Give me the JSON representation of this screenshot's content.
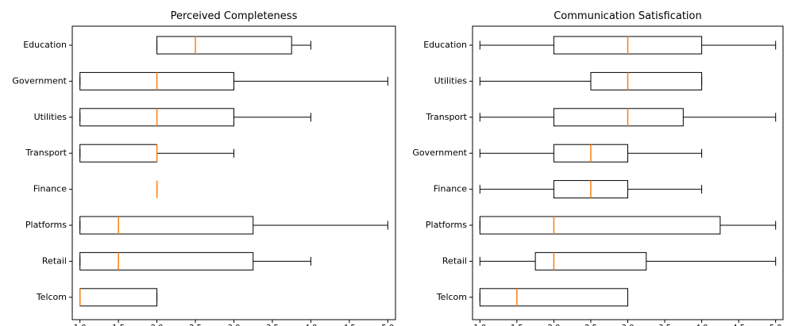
{
  "chart_data": [
    {
      "type": "boxplot",
      "orientation": "horizontal",
      "title": "Perceived Completeness",
      "xlim": [
        0.9,
        5.1
      ],
      "xticks": [
        "1.0",
        "1.5",
        "2.0",
        "2.5",
        "3.0",
        "3.5",
        "4.0",
        "4.5",
        "5.0"
      ],
      "median_color": "#ff7f0e",
      "categories": [
        "Education",
        "Government",
        "Utilities",
        "Transport",
        "Finance",
        "Platforms",
        "Retail",
        "Telcom"
      ],
      "boxes": [
        {
          "label": "Education",
          "min": 2.0,
          "q1": 2.0,
          "median": 2.5,
          "q3": 3.75,
          "max": 4.0
        },
        {
          "label": "Government",
          "min": 1.0,
          "q1": 1.0,
          "median": 2.0,
          "q3": 3.0,
          "max": 5.0
        },
        {
          "label": "Utilities",
          "min": 1.0,
          "q1": 1.0,
          "median": 2.0,
          "q3": 3.0,
          "max": 4.0
        },
        {
          "label": "Transport",
          "min": 1.0,
          "q1": 1.0,
          "median": 2.0,
          "q3": 2.0,
          "max": 3.0
        },
        {
          "label": "Finance",
          "min": 2.0,
          "q1": 2.0,
          "median": 2.0,
          "q3": 2.0,
          "max": 2.0
        },
        {
          "label": "Platforms",
          "min": 1.0,
          "q1": 1.0,
          "median": 1.5,
          "q3": 3.25,
          "max": 5.0
        },
        {
          "label": "Retail",
          "min": 1.0,
          "q1": 1.0,
          "median": 1.5,
          "q3": 3.25,
          "max": 4.0
        },
        {
          "label": "Telcom",
          "min": 1.0,
          "q1": 1.0,
          "median": 1.0,
          "q3": 2.0,
          "max": 2.0
        }
      ]
    },
    {
      "type": "boxplot",
      "orientation": "horizontal",
      "title": "Communication Satisfication",
      "xlim": [
        0.9,
        5.1
      ],
      "xticks": [
        "1.0",
        "1.5",
        "2.0",
        "2.5",
        "3.0",
        "3.5",
        "4.0",
        "4.5",
        "5.0"
      ],
      "median_color": "#ff7f0e",
      "categories": [
        "Education",
        "Utilities",
        "Transport",
        "Government",
        "Finance",
        "Platforms",
        "Retail",
        "Telcom"
      ],
      "boxes": [
        {
          "label": "Education",
          "min": 1.0,
          "q1": 2.0,
          "median": 3.0,
          "q3": 4.0,
          "max": 5.0
        },
        {
          "label": "Utilities",
          "min": 1.0,
          "q1": 2.5,
          "median": 3.0,
          "q3": 4.0,
          "max": 4.0
        },
        {
          "label": "Transport",
          "min": 1.0,
          "q1": 2.0,
          "median": 3.0,
          "q3": 3.75,
          "max": 5.0
        },
        {
          "label": "Government",
          "min": 1.0,
          "q1": 2.0,
          "median": 2.5,
          "q3": 3.0,
          "max": 4.0
        },
        {
          "label": "Finance",
          "min": 1.0,
          "q1": 2.0,
          "median": 2.5,
          "q3": 3.0,
          "max": 4.0
        },
        {
          "label": "Platforms",
          "min": 1.0,
          "q1": 1.0,
          "median": 2.0,
          "q3": 4.25,
          "max": 5.0
        },
        {
          "label": "Retail",
          "min": 1.0,
          "q1": 1.75,
          "median": 2.0,
          "q3": 3.25,
          "max": 5.0
        },
        {
          "label": "Telcom",
          "min": 1.0,
          "q1": 1.0,
          "median": 1.5,
          "q3": 3.0,
          "max": 3.0
        }
      ]
    }
  ]
}
